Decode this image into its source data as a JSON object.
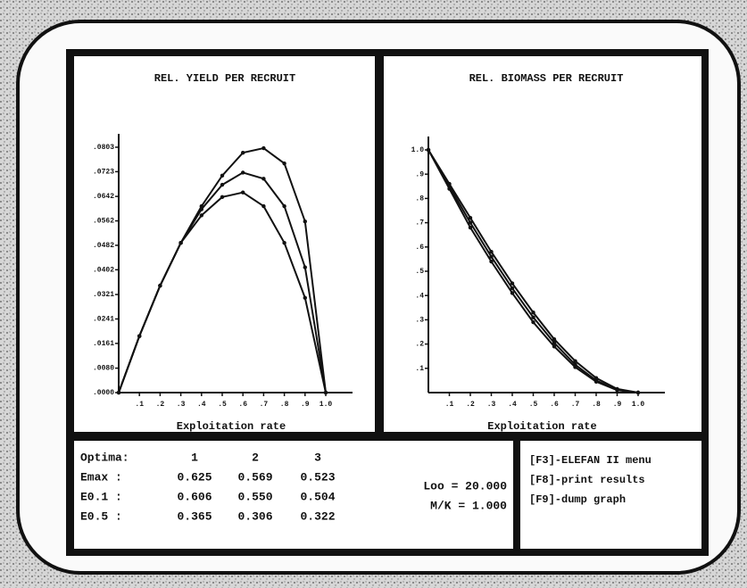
{
  "chart_data": [
    {
      "type": "line",
      "title": "REL. YIELD PER RECRUIT",
      "x_label": "Exploitation rate",
      "x": [
        0,
        0.1,
        0.2,
        0.3,
        0.4,
        0.5,
        0.6,
        0.7,
        0.8,
        0.9,
        1.0
      ],
      "xlim": [
        0,
        1.0
      ],
      "xticks": [
        {
          "value": 0.1,
          "label": ".1"
        },
        {
          "value": 0.2,
          "label": ".2"
        },
        {
          "value": 0.3,
          "label": ".3"
        },
        {
          "value": 0.4,
          "label": ".4"
        },
        {
          "value": 0.5,
          "label": ".5"
        },
        {
          "value": 0.6,
          "label": ".6"
        },
        {
          "value": 0.7,
          "label": ".7"
        },
        {
          "value": 0.8,
          "label": ".8"
        },
        {
          "value": 0.9,
          "label": ".9"
        },
        {
          "value": 1.0,
          "label": "1.0"
        }
      ],
      "ylim": [
        0,
        0.0803
      ],
      "yticks": [
        {
          "value": 0,
          "label": ".0000"
        },
        {
          "value": 0.008,
          "label": ".0080"
        },
        {
          "value": 0.0161,
          "label": ".0161"
        },
        {
          "value": 0.0241,
          "label": ".0241"
        },
        {
          "value": 0.0321,
          "label": ".0321"
        },
        {
          "value": 0.0402,
          "label": ".0402"
        },
        {
          "value": 0.0482,
          "label": ".0482"
        },
        {
          "value": 0.0562,
          "label": ".0562"
        },
        {
          "value": 0.0642,
          "label": ".0642"
        },
        {
          "value": 0.0723,
          "label": ".0723"
        },
        {
          "value": 0.0803,
          "label": ".0803"
        }
      ],
      "series": [
        {
          "color": "#111111",
          "values": [
            0,
            0.0185,
            0.035,
            0.049,
            0.061,
            0.071,
            0.0785,
            0.08,
            0.075,
            0.056,
            0
          ]
        },
        {
          "color": "#111111",
          "values": [
            0,
            0.0185,
            0.035,
            0.049,
            0.06,
            0.068,
            0.072,
            0.07,
            0.061,
            0.041,
            0
          ]
        },
        {
          "color": "#111111",
          "values": [
            0,
            0.0185,
            0.035,
            0.049,
            0.058,
            0.064,
            0.0655,
            0.061,
            0.049,
            0.031,
            0
          ]
        }
      ]
    },
    {
      "type": "line",
      "title": "REL. BIOMASS PER RECRUIT",
      "x_label": "Exploitation rate",
      "x": [
        0,
        0.1,
        0.2,
        0.3,
        0.4,
        0.5,
        0.6,
        0.7,
        0.8,
        0.9,
        1.0
      ],
      "xlim": [
        0,
        1.0
      ],
      "xticks": [
        {
          "value": 0.1,
          "label": ".1"
        },
        {
          "value": 0.2,
          "label": ".2"
        },
        {
          "value": 0.3,
          "label": ".3"
        },
        {
          "value": 0.4,
          "label": ".4"
        },
        {
          "value": 0.5,
          "label": ".5"
        },
        {
          "value": 0.6,
          "label": ".6"
        },
        {
          "value": 0.7,
          "label": ".7"
        },
        {
          "value": 0.8,
          "label": ".8"
        },
        {
          "value": 0.9,
          "label": ".9"
        },
        {
          "value": 1.0,
          "label": "1.0"
        }
      ],
      "ylim": [
        0,
        1.0
      ],
      "yticks": [
        {
          "value": 0.1,
          "label": ".1"
        },
        {
          "value": 0.2,
          "label": ".2"
        },
        {
          "value": 0.3,
          "label": ".3"
        },
        {
          "value": 0.4,
          "label": ".4"
        },
        {
          "value": 0.5,
          "label": ".5"
        },
        {
          "value": 0.6,
          "label": ".6"
        },
        {
          "value": 0.7,
          "label": ".7"
        },
        {
          "value": 0.8,
          "label": ".8"
        },
        {
          "value": 0.9,
          "label": ".9"
        },
        {
          "value": 1.0,
          "label": "1.0"
        }
      ],
      "series": [
        {
          "color": "#111111",
          "values": [
            1.0,
            0.86,
            0.72,
            0.58,
            0.45,
            0.33,
            0.22,
            0.13,
            0.06,
            0.015,
            0
          ]
        },
        {
          "color": "#111111",
          "values": [
            1.0,
            0.85,
            0.7,
            0.56,
            0.43,
            0.31,
            0.205,
            0.115,
            0.05,
            0.012,
            0
          ]
        },
        {
          "color": "#111111",
          "values": [
            1.0,
            0.84,
            0.68,
            0.54,
            0.41,
            0.29,
            0.19,
            0.105,
            0.045,
            0.01,
            0
          ]
        }
      ]
    }
  ],
  "results": {
    "header": [
      "Optima:",
      "1",
      "2",
      "3"
    ],
    "rows": [
      [
        "Emax :",
        "0.625",
        "0.569",
        "0.523"
      ],
      [
        "E0.1 :",
        "0.606",
        "0.550",
        "0.504"
      ],
      [
        "E0.5 :",
        "0.365",
        "0.306",
        "0.322"
      ]
    ]
  },
  "params": [
    "Loo = 20.000",
    "M/K = 1.000"
  ],
  "menu": [
    "[F3]-ELEFAN II menu",
    "[F8]-print results",
    "[F9]-dump graph"
  ]
}
